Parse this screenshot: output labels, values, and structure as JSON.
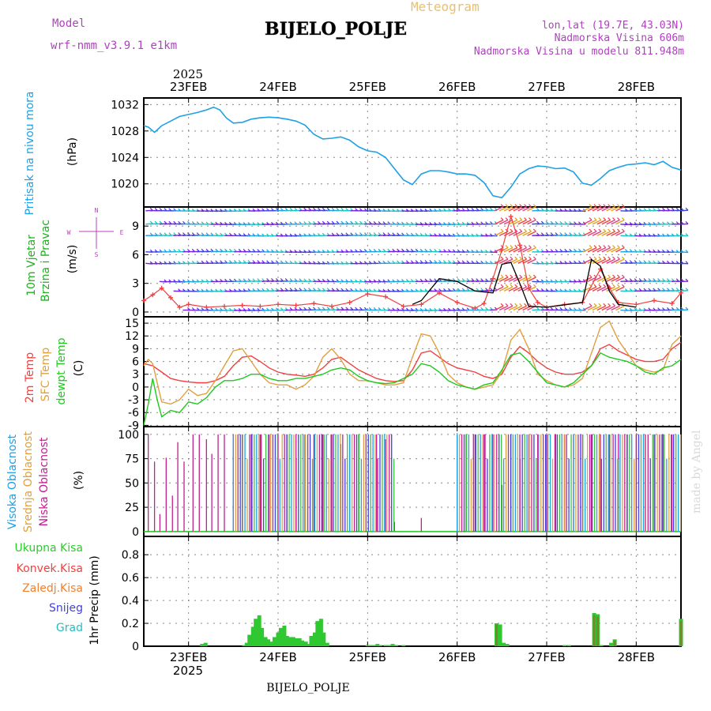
{
  "header": {
    "model_label": "Model",
    "model_name": "wrf-nmm_v3.9.1 e1km",
    "product": "Meteogram",
    "station": "BIJELO_POLJE",
    "lonlat": "lon,lat (19.7E, 43.03N)",
    "elevation": "Nadmorska Visina 606m",
    "model_elevation": "Nadmorska Visina u modelu 811.948m",
    "footer_station": "BIJELO_POLJE",
    "watermark": "made by Angel",
    "year": "2025"
  },
  "colors": {
    "pressure": "#1ea0e6",
    "t2m": "#f04040",
    "sfc": "#e0a040",
    "dew": "#20c820",
    "high_cloud": "#1ea0e6",
    "mid_cloud": "#e0a040",
    "low_cloud": "#c02090",
    "total_precip": "#30c830",
    "convective": "#f04040",
    "frozen": "#f08030",
    "snow": "#4040e0",
    "graupel": "#20c0c0",
    "wind_label": "#20b020",
    "compass": "#c040c0"
  },
  "chart_data": [
    {
      "type": "line",
      "panel": "pressure",
      "ylabel_left": "Pritisak na nivou mora",
      "ylabel_right": "(hPa)",
      "x_unit": "days since 23FEB 00UTC",
      "xlim": [
        -0.5,
        5.5
      ],
      "ylim": [
        1016.5,
        1033
      ],
      "yticks": [
        1020,
        1024,
        1028,
        1032
      ],
      "xtick_labels": [
        "23FEB",
        "24FEB",
        "25FEB",
        "26FEB",
        "27FEB",
        "28FEB"
      ],
      "series": [
        {
          "x": [
            -0.5,
            -0.45,
            -0.38,
            -0.3,
            -0.2,
            -0.1,
            0.0,
            0.1,
            0.2,
            0.28,
            0.35,
            0.42,
            0.5,
            0.6,
            0.7,
            0.8,
            0.9,
            1.0,
            1.1,
            1.2,
            1.3,
            1.4,
            1.5,
            1.6,
            1.7,
            1.8,
            1.9,
            2.0,
            2.1,
            2.2,
            2.3,
            2.4,
            2.5,
            2.6,
            2.7,
            2.8,
            2.9,
            3.0,
            3.1,
            3.2,
            3.3,
            3.4,
            3.5,
            3.6,
            3.7,
            3.8,
            3.9,
            4.0,
            4.1,
            4.2,
            4.3,
            4.4,
            4.5,
            4.6,
            4.7,
            4.8,
            4.9,
            5.0,
            5.1,
            5.2,
            5.3,
            5.4,
            5.5
          ],
          "values": [
            1028.8,
            1028.6,
            1027.8,
            1028.8,
            1029.5,
            1030.2,
            1030.5,
            1030.8,
            1031.2,
            1031.6,
            1031.2,
            1030.0,
            1029.2,
            1029.3,
            1029.8,
            1030.0,
            1030.1,
            1030.0,
            1029.8,
            1029.5,
            1028.9,
            1027.5,
            1026.8,
            1026.9,
            1027.1,
            1026.6,
            1025.6,
            1025.0,
            1024.8,
            1024.0,
            1022.3,
            1020.6,
            1019.9,
            1021.5,
            1022.0,
            1022.0,
            1021.8,
            1021.5,
            1021.5,
            1021.3,
            1020.2,
            1018.2,
            1017.9,
            1019.5,
            1021.5,
            1022.3,
            1022.7,
            1022.6,
            1022.3,
            1022.4,
            1021.8,
            1020.1,
            1019.8,
            1020.8,
            1022.0,
            1022.5,
            1022.9,
            1023.0,
            1023.2,
            1022.9,
            1023.4,
            1022.5,
            1022.1
          ]
        }
      ]
    },
    {
      "type": "line",
      "panel": "wind",
      "ylabel_left": [
        "10m Vjetar",
        "Brzina i Pravac"
      ],
      "ylabel_right": "(m/s)",
      "compass": "W <-|-> E, S <-|-> N",
      "ylim": [
        -0.5,
        11
      ],
      "yticks": [
        0,
        3,
        6,
        9
      ],
      "series": [
        {
          "name": "wind speed",
          "x": [
            -0.5,
            -0.4,
            -0.3,
            -0.2,
            -0.1,
            0.0,
            0.2,
            0.4,
            0.6,
            0.8,
            1.0,
            1.2,
            1.4,
            1.6,
            1.8,
            2.0,
            2.2,
            2.4,
            2.6,
            2.8,
            3.0,
            3.2,
            3.3,
            3.4,
            3.5,
            3.6,
            3.7,
            3.8,
            3.9,
            4.0,
            4.2,
            4.4,
            4.6,
            4.7,
            4.8,
            5.0,
            5.2,
            5.4,
            5.5
          ],
          "values": [
            1.2,
            1.8,
            2.5,
            1.5,
            0.5,
            0.8,
            0.5,
            0.6,
            0.7,
            0.6,
            0.8,
            0.7,
            0.9,
            0.6,
            1.0,
            1.9,
            1.6,
            0.6,
            0.8,
            2.0,
            1.0,
            0.4,
            0.9,
            3.5,
            6.5,
            10.0,
            7.0,
            2.5,
            1.0,
            0.5,
            0.8,
            1.0,
            4.5,
            2.5,
            1.0,
            0.8,
            1.2,
            0.9,
            2.0
          ]
        },
        {
          "name": "gust",
          "x": [
            2.5,
            2.6,
            2.8,
            3.0,
            3.2,
            3.4,
            3.5,
            3.6,
            3.7,
            3.8,
            4.0,
            4.4,
            4.5,
            4.6,
            4.7,
            4.8,
            5.0
          ],
          "values": [
            0.8,
            1.2,
            3.5,
            3.2,
            2.2,
            2.0,
            5.0,
            5.2,
            3.0,
            0.6,
            0.5,
            1.0,
            5.5,
            4.8,
            2.2,
            0.8,
            0.5
          ]
        }
      ]
    },
    {
      "type": "line",
      "panel": "temperature",
      "ylabel_left": [
        "2m Temp",
        "SFC Temp",
        "dewpt Temp"
      ],
      "ylabel_right": "(C)",
      "ylim": [
        -9.3,
        16.5
      ],
      "yticks": [
        -9,
        -6,
        -3,
        0,
        3,
        6,
        9,
        12,
        15
      ],
      "series": [
        {
          "name": "2m Temp",
          "x": [
            -0.5,
            -0.4,
            -0.3,
            -0.2,
            -0.1,
            0.0,
            0.1,
            0.2,
            0.3,
            0.4,
            0.5,
            0.6,
            0.7,
            0.8,
            0.9,
            1.0,
            1.1,
            1.2,
            1.3,
            1.4,
            1.5,
            1.6,
            1.7,
            1.8,
            1.9,
            2.0,
            2.1,
            2.2,
            2.3,
            2.4,
            2.5,
            2.6,
            2.7,
            2.8,
            2.9,
            3.0,
            3.1,
            3.2,
            3.3,
            3.4,
            3.5,
            3.6,
            3.7,
            3.8,
            3.9,
            4.0,
            4.1,
            4.2,
            4.3,
            4.4,
            4.5,
            4.6,
            4.7,
            4.8,
            4.9,
            5.0,
            5.1,
            5.2,
            5.3,
            5.4,
            5.5
          ],
          "values": [
            5.5,
            5.0,
            3.5,
            2.0,
            1.5,
            1.2,
            1.0,
            1.0,
            1.5,
            2.5,
            5.0,
            7.0,
            7.3,
            6.0,
            4.5,
            3.5,
            3.0,
            2.8,
            2.5,
            3.0,
            4.5,
            6.5,
            7.0,
            5.5,
            4.0,
            3.0,
            2.0,
            1.5,
            1.3,
            1.5,
            4.0,
            8.0,
            8.5,
            7.0,
            5.5,
            4.5,
            4.0,
            3.5,
            2.5,
            2.0,
            3.0,
            7.0,
            9.5,
            8.0,
            6.0,
            4.5,
            3.5,
            3.0,
            3.0,
            3.5,
            5.0,
            9.0,
            10.0,
            8.5,
            7.5,
            6.5,
            6.0,
            6.0,
            6.5,
            9.0,
            10.5
          ]
        },
        {
          "name": "SFC Temp",
          "x": [
            -0.5,
            -0.45,
            -0.4,
            -0.3,
            -0.2,
            -0.1,
            0.0,
            0.1,
            0.2,
            0.3,
            0.4,
            0.5,
            0.6,
            0.7,
            0.8,
            0.9,
            1.0,
            1.1,
            1.2,
            1.3,
            1.4,
            1.5,
            1.6,
            1.7,
            1.8,
            1.9,
            2.0,
            2.1,
            2.2,
            2.3,
            2.4,
            2.5,
            2.6,
            2.7,
            2.8,
            2.9,
            3.0,
            3.1,
            3.2,
            3.3,
            3.4,
            3.5,
            3.6,
            3.7,
            3.8,
            3.9,
            4.0,
            4.1,
            4.2,
            4.3,
            4.4,
            4.5,
            4.6,
            4.7,
            4.8,
            4.9,
            5.0,
            5.1,
            5.2,
            5.3,
            5.4,
            5.5
          ],
          "values": [
            5.0,
            6.5,
            5.5,
            -3.5,
            -4.0,
            -3.0,
            -0.5,
            -2.0,
            -1.5,
            1.5,
            5.0,
            8.5,
            9.0,
            6.0,
            3.0,
            1.0,
            0.5,
            0.5,
            -0.5,
            0.5,
            2.5,
            7.0,
            9.0,
            6.5,
            3.0,
            1.5,
            1.5,
            1.0,
            0.5,
            0.5,
            1.0,
            7.0,
            12.5,
            12.0,
            8.0,
            3.0,
            1.0,
            0.0,
            -0.5,
            0.0,
            0.5,
            3.5,
            11.0,
            13.5,
            9.0,
            3.0,
            1.5,
            0.5,
            0.0,
            0.5,
            2.0,
            8.0,
            14.0,
            15.5,
            11.0,
            8.0,
            5.0,
            4.0,
            3.5,
            4.0,
            10.0,
            12.0
          ]
        },
        {
          "name": "dewpt Temp",
          "x": [
            -0.5,
            -0.45,
            -0.4,
            -0.35,
            -0.3,
            -0.2,
            -0.1,
            0.0,
            0.1,
            0.2,
            0.3,
            0.4,
            0.5,
            0.6,
            0.7,
            0.8,
            0.9,
            1.0,
            1.1,
            1.2,
            1.3,
            1.4,
            1.5,
            1.6,
            1.7,
            1.8,
            1.9,
            2.0,
            2.1,
            2.2,
            2.3,
            2.4,
            2.5,
            2.6,
            2.7,
            2.8,
            2.9,
            3.0,
            3.1,
            3.2,
            3.3,
            3.4,
            3.5,
            3.6,
            3.7,
            3.8,
            3.9,
            4.0,
            4.1,
            4.2,
            4.3,
            4.4,
            4.5,
            4.6,
            4.7,
            4.8,
            4.9,
            5.0,
            5.1,
            5.2,
            5.3,
            5.4,
            5.5
          ],
          "values": [
            -9.0,
            -4.0,
            2.0,
            -3.0,
            -7.0,
            -5.5,
            -6.0,
            -3.5,
            -4.0,
            -2.5,
            0.0,
            1.5,
            1.5,
            2.0,
            3.0,
            3.0,
            2.0,
            1.5,
            1.5,
            2.0,
            2.0,
            2.5,
            3.0,
            4.0,
            4.5,
            4.0,
            2.5,
            1.5,
            1.0,
            0.8,
            1.0,
            2.0,
            3.0,
            5.5,
            5.0,
            3.5,
            1.5,
            0.5,
            0.0,
            -0.5,
            0.5,
            1.0,
            4.0,
            7.5,
            8.0,
            6.0,
            3.5,
            1.0,
            0.5,
            0.0,
            1.0,
            3.0,
            5.0,
            8.0,
            7.0,
            6.5,
            6.0,
            5.0,
            3.5,
            3.0,
            4.5,
            5.0,
            6.5
          ]
        }
      ]
    },
    {
      "type": "bar",
      "panel": "cloud",
      "ylabel_left": [
        "Visoka Oblacnost",
        "Srednja Oblacnost",
        "Niska Oblacnost"
      ],
      "ylabel_right": "(%)",
      "ylim": [
        -5,
        108
      ],
      "yticks": [
        0,
        25,
        50,
        75,
        100
      ],
      "low_cloud_spikes": {
        "x": [
          -0.45,
          -0.38,
          -0.32,
          -0.25,
          -0.18,
          -0.12,
          -0.05,
          0.05,
          0.12,
          0.2,
          0.26,
          0.33,
          0.4,
          0.5,
          0.6,
          0.7,
          0.8,
          0.9,
          1.0,
          1.1,
          1.2,
          1.3,
          1.4,
          1.5,
          1.6,
          1.7,
          1.8,
          1.9,
          2.1,
          2.2,
          2.3,
          2.4,
          2.5,
          2.6,
          2.7,
          2.8,
          2.9,
          3.0,
          3.1,
          3.2,
          3.3,
          3.4,
          3.5,
          3.6,
          3.7,
          3.8,
          3.9,
          4.0,
          4.1,
          4.2,
          4.3,
          4.4,
          4.5,
          4.6,
          4.7,
          4.8,
          4.9,
          5.0,
          5.1,
          5.2,
          5.3,
          5.4
        ],
        "values": [
          100,
          72,
          18,
          76,
          37,
          92,
          72,
          100,
          100,
          95,
          80,
          100,
          100,
          100,
          100,
          100,
          100,
          100,
          100,
          100,
          100,
          100,
          100,
          100,
          100,
          90,
          100,
          100,
          100,
          95,
          10,
          0,
          0,
          14,
          0,
          0,
          0,
          100,
          100,
          100,
          100,
          100,
          48,
          100,
          100,
          100,
          100,
          100,
          100,
          100,
          100,
          100,
          100,
          100,
          100,
          100,
          100,
          100,
          100,
          100,
          100,
          100
        ]
      },
      "cloudy_periods": [
        [
          0.5,
          2.3
        ],
        [
          3.0,
          5.5
        ]
      ]
    },
    {
      "type": "bar",
      "panel": "precip",
      "ylabel_right": "1hr Precip (mm)",
      "legend": [
        "Ukupna Kisa",
        "Konvek.Kisa",
        "Zaledj.Kisa",
        "Snijeg",
        "Grad"
      ],
      "ylim": [
        0,
        0.96
      ],
      "yticks": [
        0,
        0.2,
        0.4,
        0.6,
        0.8
      ],
      "total_rain": {
        "x": [
          0.15,
          0.19,
          0.62,
          0.65,
          0.68,
          0.72,
          0.75,
          0.79,
          0.82,
          0.86,
          0.89,
          0.93,
          0.96,
          1.0,
          1.03,
          1.07,
          1.1,
          1.13,
          1.17,
          1.2,
          1.24,
          1.27,
          1.31,
          1.34,
          1.37,
          1.41,
          1.44,
          1.48,
          1.51,
          1.55,
          2.0,
          2.04,
          2.07,
          2.11,
          2.14,
          2.2,
          2.24,
          2.28,
          2.32,
          2.4,
          3.44,
          3.48,
          3.52,
          3.56,
          4.2,
          4.25,
          4.53,
          4.57,
          4.61,
          4.72,
          4.76,
          5.5
        ],
        "values": [
          0.02,
          0.03,
          0.01,
          0.03,
          0.1,
          0.17,
          0.24,
          0.27,
          0.16,
          0.08,
          0.06,
          0.04,
          0.08,
          0.12,
          0.16,
          0.18,
          0.09,
          0.08,
          0.08,
          0.07,
          0.07,
          0.05,
          0.04,
          0.02,
          0.09,
          0.12,
          0.22,
          0.24,
          0.12,
          0.03,
          0.01,
          0.01,
          0.01,
          0.02,
          0.01,
          0.01,
          0.01,
          0.02,
          0.01,
          0.01,
          0.2,
          0.19,
          0.03,
          0.02,
          0.01,
          0.01,
          0.29,
          0.28,
          0.01,
          0.03,
          0.06,
          0.24
        ]
      },
      "convective": {
        "x": [
          3.44,
          4.53,
          4.57,
          4.76,
          5.5
        ],
        "values": [
          0.19,
          0.27,
          0.26,
          0.05,
          0.22
        ]
      }
    }
  ]
}
